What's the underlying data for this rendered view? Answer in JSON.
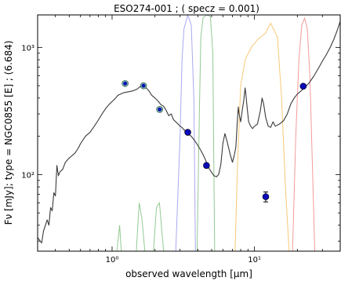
{
  "chart_data": {
    "type": "line",
    "title": "ESO274-001 ; ( specz = 0.001)",
    "xlabel": "observed wavelength [μm]",
    "ylabel": "Fν [mJy];  type = NGC0855 [E] ; (6.684)",
    "xscale": "log",
    "yscale": "log",
    "xlim": [
      0.3,
      40
    ],
    "ylim": [
      25,
      1800
    ],
    "grid": false,
    "legend": "none",
    "x_ticks": [
      {
        "value": 1,
        "label": "10⁰"
      },
      {
        "value": 10,
        "label": "10¹"
      }
    ],
    "y_ticks": [
      {
        "value": 100,
        "label": "10²"
      },
      {
        "value": 1000,
        "label": "10³"
      }
    ],
    "colors": {
      "sed": "#3a3a3a",
      "photometry": "#0a0ab8",
      "model_ring": "#6fb0a0",
      "filter_blue": "#9a9aee",
      "filter_green": "#80c080",
      "filter_orange": "#f5c060",
      "filter_red": "#f08a8a"
    },
    "series": [
      {
        "kind": "sed_template",
        "points": [
          [
            0.3,
            32
          ],
          [
            0.32,
            29
          ],
          [
            0.33,
            36
          ],
          [
            0.35,
            44
          ],
          [
            0.36,
            40
          ],
          [
            0.37,
            55
          ],
          [
            0.38,
            52
          ],
          [
            0.39,
            72
          ],
          [
            0.4,
            68
          ],
          [
            0.41,
            118
          ],
          [
            0.42,
            98
          ],
          [
            0.43,
            105
          ],
          [
            0.45,
            110
          ],
          [
            0.47,
            125
          ],
          [
            0.5,
            135
          ],
          [
            0.52,
            140
          ],
          [
            0.55,
            148
          ],
          [
            0.58,
            162
          ],
          [
            0.6,
            175
          ],
          [
            0.65,
            200
          ],
          [
            0.7,
            215
          ],
          [
            0.75,
            240
          ],
          [
            0.8,
            268
          ],
          [
            0.85,
            300
          ],
          [
            0.9,
            330
          ],
          [
            0.95,
            355
          ],
          [
            1.0,
            375
          ],
          [
            1.05,
            395
          ],
          [
            1.1,
            420
          ],
          [
            1.2,
            440
          ],
          [
            1.3,
            448
          ],
          [
            1.4,
            455
          ],
          [
            1.5,
            470
          ],
          [
            1.6,
            500
          ],
          [
            1.65,
            520
          ],
          [
            1.7,
            490
          ],
          [
            1.8,
            460
          ],
          [
            1.9,
            420
          ],
          [
            2.0,
            400
          ],
          [
            2.1,
            380
          ],
          [
            2.2,
            355
          ],
          [
            2.3,
            345
          ],
          [
            2.4,
            320
          ],
          [
            2.5,
            290
          ],
          [
            2.6,
            300
          ],
          [
            2.7,
            270
          ],
          [
            2.8,
            260
          ],
          [
            2.9,
            250
          ],
          [
            3.0,
            240
          ],
          [
            3.1,
            235
          ],
          [
            3.2,
            225
          ],
          [
            3.3,
            220
          ],
          [
            3.4,
            212
          ],
          [
            3.5,
            205
          ],
          [
            3.6,
            200
          ],
          [
            3.8,
            185
          ],
          [
            4.0,
            170
          ],
          [
            4.2,
            155
          ],
          [
            4.4,
            140
          ],
          [
            4.6,
            125
          ],
          [
            4.8,
            112
          ],
          [
            5.0,
            104
          ],
          [
            5.2,
            98
          ],
          [
            5.4,
            96
          ],
          [
            5.6,
            100
          ],
          [
            5.8,
            120
          ],
          [
            6.0,
            175
          ],
          [
            6.2,
            210
          ],
          [
            6.4,
            185
          ],
          [
            6.6,
            160
          ],
          [
            6.8,
            140
          ],
          [
            7.0,
            125
          ],
          [
            7.2,
            140
          ],
          [
            7.4,
            165
          ],
          [
            7.6,
            280
          ],
          [
            7.7,
            340
          ],
          [
            7.8,
            300
          ],
          [
            8.0,
            260
          ],
          [
            8.2,
            320
          ],
          [
            8.4,
            380
          ],
          [
            8.5,
            430
          ],
          [
            8.6,
            480
          ],
          [
            8.7,
            430
          ],
          [
            8.9,
            330
          ],
          [
            9.1,
            260
          ],
          [
            9.4,
            240
          ],
          [
            9.7,
            230
          ],
          [
            10.0,
            240
          ],
          [
            10.5,
            250
          ],
          [
            11.0,
            320
          ],
          [
            11.3,
            400
          ],
          [
            11.6,
            360
          ],
          [
            12.0,
            280
          ],
          [
            12.5,
            240
          ],
          [
            13.0,
            235
          ],
          [
            13.5,
            260
          ],
          [
            14.0,
            240
          ],
          [
            15.0,
            250
          ],
          [
            16.0,
            265
          ],
          [
            17.0,
            300
          ],
          [
            18.0,
            360
          ],
          [
            19.0,
            400
          ],
          [
            20.0,
            430
          ],
          [
            22.0,
            470
          ],
          [
            24.0,
            520
          ],
          [
            26.0,
            590
          ],
          [
            28.0,
            680
          ],
          [
            30.0,
            780
          ],
          [
            32.0,
            880
          ],
          [
            34.0,
            1000
          ],
          [
            36.0,
            1150
          ],
          [
            38.0,
            1350
          ],
          [
            40.0,
            1600
          ]
        ]
      },
      {
        "kind": "photometry",
        "points": [
          {
            "x": 1.235,
            "y": 520,
            "yerr": 0
          },
          {
            "x": 1.662,
            "y": 500,
            "yerr": 0
          },
          {
            "x": 2.159,
            "y": 325,
            "yerr": 0
          },
          {
            "x": 3.4,
            "y": 215,
            "yerr": 0
          },
          {
            "x": 4.6,
            "y": 118,
            "yerr": 0
          },
          {
            "x": 12.0,
            "y": 67,
            "yerr": 6
          },
          {
            "x": 22.0,
            "y": 495,
            "yerr": 0
          }
        ]
      },
      {
        "kind": "model_photometry",
        "points": [
          {
            "x": 1.235,
            "y": 520
          },
          {
            "x": 1.662,
            "y": 500
          },
          {
            "x": 2.159,
            "y": 325
          }
        ]
      },
      {
        "kind": "filter_curves",
        "curves": [
          {
            "band": "J",
            "color_key": "filter_green",
            "points": [
              [
                1.08,
                25
              ],
              [
                1.13,
                40
              ],
              [
                1.16,
                25
              ]
            ]
          },
          {
            "band": "H",
            "color_key": "filter_green",
            "points": [
              [
                1.48,
                25
              ],
              [
                1.55,
                60
              ],
              [
                1.62,
                45
              ],
              [
                1.7,
                25
              ]
            ]
          },
          {
            "band": "Ks",
            "color_key": "filter_green",
            "points": [
              [
                1.95,
                25
              ],
              [
                2.05,
                55
              ],
              [
                2.15,
                60
              ],
              [
                2.3,
                25
              ]
            ]
          },
          {
            "band": "W1",
            "color_key": "filter_blue",
            "points": [
              [
                2.8,
                25
              ],
              [
                3.0,
                200
              ],
              [
                3.1,
                800
              ],
              [
                3.2,
                1400
              ],
              [
                3.4,
                1800
              ],
              [
                3.6,
                1500
              ],
              [
                3.75,
                400
              ],
              [
                3.85,
                25
              ]
            ]
          },
          {
            "band": "W2",
            "color_key": "filter_green",
            "points": [
              [
                3.95,
                25
              ],
              [
                4.1,
                300
              ],
              [
                4.2,
                1200
              ],
              [
                4.35,
                1700
              ],
              [
                4.6,
                1800
              ],
              [
                4.9,
                1750
              ],
              [
                5.1,
                900
              ],
              [
                5.25,
                25
              ]
            ]
          },
          {
            "band": "W3",
            "color_key": "filter_orange",
            "points": [
              [
                7.3,
                25
              ],
              [
                7.6,
                120
              ],
              [
                8.0,
                500
              ],
              [
                8.6,
                800
              ],
              [
                9.5,
                1000
              ],
              [
                10.5,
                1150
              ],
              [
                12.0,
                1300
              ],
              [
                13.0,
                1550
              ],
              [
                14.5,
                1200
              ],
              [
                15.5,
                400
              ],
              [
                16.5,
                80
              ],
              [
                17.5,
                25
              ]
            ]
          },
          {
            "band": "W4",
            "color_key": "filter_red",
            "points": [
              [
                18.5,
                25
              ],
              [
                19.5,
                200
              ],
              [
                20.5,
                800
              ],
              [
                21.5,
                1500
              ],
              [
                22.5,
                1700
              ],
              [
                23.5,
                1400
              ],
              [
                24.5,
                600
              ],
              [
                25.5,
                120
              ],
              [
                26.5,
                25
              ]
            ]
          }
        ]
      }
    ]
  }
}
